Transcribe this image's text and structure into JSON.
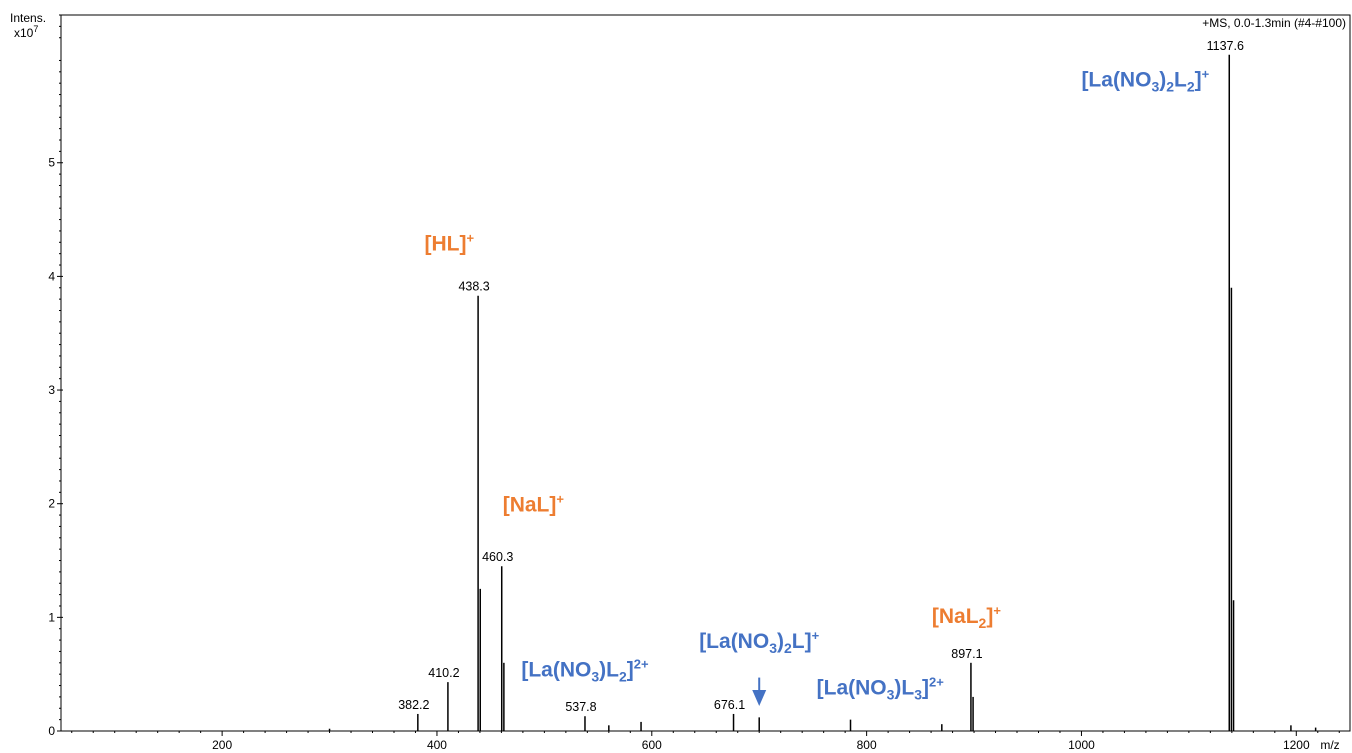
{
  "chart_data": {
    "type": "bar",
    "title": "",
    "header_note": "+MS, 0.0-1.3min (#4-#100)",
    "ylabel_line1": "Intens.",
    "ylabel_line2": "x10",
    "ylabel_exp": "7",
    "xlabel": "m/z",
    "xlim": [
      50,
      1250
    ],
    "ylim": [
      0,
      6.3
    ],
    "grid": false,
    "y_ticks": [
      "0",
      "1",
      "2",
      "3",
      "4",
      "5"
    ],
    "x_ticks": [
      "200",
      "400",
      "600",
      "800",
      "1000",
      "1200"
    ],
    "peaks": [
      {
        "mz": 382.2,
        "intensity": 0.15,
        "label": "382.2"
      },
      {
        "mz": 410.2,
        "intensity": 0.43,
        "label": "410.2"
      },
      {
        "mz": 438.3,
        "intensity": 3.83,
        "label": "438.3"
      },
      {
        "mz": 460.3,
        "intensity": 1.45,
        "label": "460.3"
      },
      {
        "mz": 537.8,
        "intensity": 0.13,
        "label": "537.8"
      },
      {
        "mz": 676.1,
        "intensity": 0.15,
        "label": "676.1"
      },
      {
        "mz": 897.1,
        "intensity": 0.6,
        "label": "897.1"
      },
      {
        "mz": 1137.6,
        "intensity": 5.95,
        "label": "1137.6"
      }
    ],
    "minor_peaks": [
      {
        "mz": 440.3,
        "intensity": 1.25
      },
      {
        "mz": 462.3,
        "intensity": 0.6
      },
      {
        "mz": 300,
        "intensity": 0.02
      },
      {
        "mz": 560,
        "intensity": 0.05
      },
      {
        "mz": 590,
        "intensity": 0.08
      },
      {
        "mz": 700,
        "intensity": 0.12
      },
      {
        "mz": 785,
        "intensity": 0.1
      },
      {
        "mz": 870,
        "intensity": 0.06
      },
      {
        "mz": 899.1,
        "intensity": 0.3
      },
      {
        "mz": 1139.6,
        "intensity": 3.9
      },
      {
        "mz": 1141.6,
        "intensity": 1.15
      },
      {
        "mz": 1195,
        "intensity": 0.05
      },
      {
        "mz": 1218,
        "intensity": 0.03
      }
    ],
    "annotations": [
      {
        "parts": [
          [
            "b",
            "[HL]"
          ],
          [
            "sup",
            "+"
          ]
        ],
        "color": "#ED7D31",
        "mz": 438.3,
        "y": 4.23,
        "anchor": "end",
        "dx": -4
      },
      {
        "parts": [
          [
            "b",
            "[NaL]"
          ],
          [
            "sup",
            "+"
          ]
        ],
        "color": "#ED7D31",
        "mz": 460.3,
        "y": 1.93,
        "anchor": "start",
        "dx": 1
      },
      {
        "parts": [
          [
            "b",
            "[NaL"
          ],
          [
            "sub",
            "2"
          ],
          [
            "b",
            "]"
          ],
          [
            "sup",
            "+"
          ]
        ],
        "color": "#ED7D31",
        "mz": 897.1,
        "y": 0.95,
        "anchor": "end",
        "dx": 30
      },
      {
        "parts": [
          [
            "b",
            "[La(NO"
          ],
          [
            "sub",
            "3"
          ],
          [
            "b",
            ")"
          ],
          [
            "sub",
            "2"
          ],
          [
            "b",
            "L"
          ],
          [
            "sub",
            "2"
          ],
          [
            "b",
            "]"
          ],
          [
            "sup",
            "+"
          ]
        ],
        "color": "#4472C4",
        "mz": 1137.6,
        "y": 5.67,
        "anchor": "end",
        "dx": -20
      },
      {
        "parts": [
          [
            "b",
            "[La(NO"
          ],
          [
            "sub",
            "3"
          ],
          [
            "b",
            ")L"
          ],
          [
            "sub",
            "2"
          ],
          [
            "b",
            "]"
          ],
          [
            "sup",
            "2+"
          ]
        ],
        "color": "#4472C4",
        "mz": 537.8,
        "y": 0.48,
        "anchor": "middle",
        "dx": 0
      },
      {
        "parts": [
          [
            "b",
            "[La(NO"
          ],
          [
            "sub",
            "3"
          ],
          [
            "b",
            ")"
          ],
          [
            "sub",
            "2"
          ],
          [
            "b",
            "L]"
          ],
          [
            "sup",
            "+"
          ]
        ],
        "color": "#4472C4",
        "mz": 700,
        "y": 0.73,
        "anchor": "middle",
        "dx": 0
      },
      {
        "parts": [
          [
            "b",
            "[La(NO"
          ],
          [
            "sub",
            "3"
          ],
          [
            "b",
            ")L"
          ],
          [
            "sub",
            "3"
          ],
          [
            "b",
            "]"
          ],
          [
            "sup",
            "2+"
          ]
        ],
        "color": "#4472C4",
        "mz": 800,
        "y": 0.32,
        "anchor": "start",
        "dx": -50
      }
    ],
    "arrow": {
      "mz": 700,
      "y_from": 0.47,
      "y_to": 0.22,
      "color": "#4472C4"
    }
  }
}
